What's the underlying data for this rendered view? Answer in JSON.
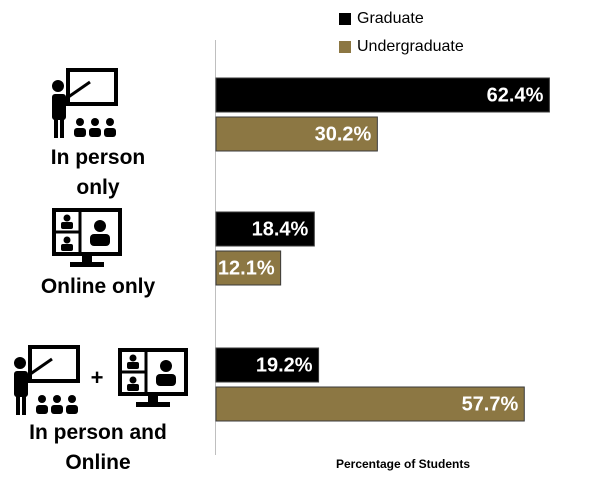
{
  "chart_data": {
    "type": "hbar",
    "categories": [
      "In person only",
      "Online only",
      "In person and Online"
    ],
    "series": [
      {
        "name": "Graduate",
        "color": "#000000",
        "values": [
          62.4,
          18.4,
          19.2
        ],
        "value_labels": [
          "62.4%",
          "18.4%",
          "19.2%"
        ]
      },
      {
        "name": "Undergraduate",
        "color": "#8c7743",
        "values": [
          30.2,
          12.1,
          57.7
        ],
        "value_labels": [
          "30.2%",
          "12.1%",
          "57.7%"
        ]
      }
    ],
    "x_label": "Percentage of Students",
    "xlim": [
      0,
      70
    ],
    "legend": "top"
  }
}
